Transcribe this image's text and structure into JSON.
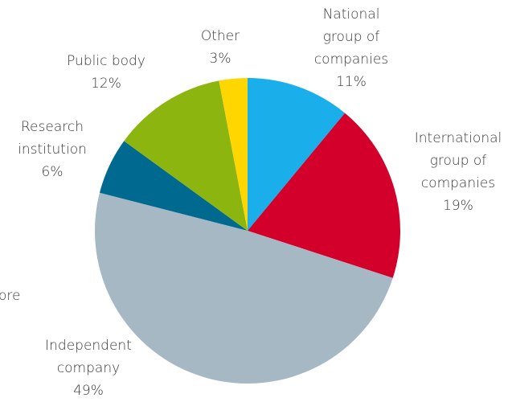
{
  "chart_data": {
    "type": "pie",
    "categories": [
      "National group of companies",
      "International group of companies",
      "Independent company",
      "Research institution",
      "Public body",
      "Other"
    ],
    "values": [
      11,
      19,
      49,
      6,
      12,
      3
    ],
    "value_labels": [
      "11%",
      "19%",
      "49%",
      "6%",
      "12%",
      "3%"
    ],
    "colors": [
      "#1aaeea",
      "#d2002a",
      "#a6b8c3",
      "#00698f",
      "#8db50f",
      "#ffd600"
    ],
    "annotation": "ore"
  }
}
